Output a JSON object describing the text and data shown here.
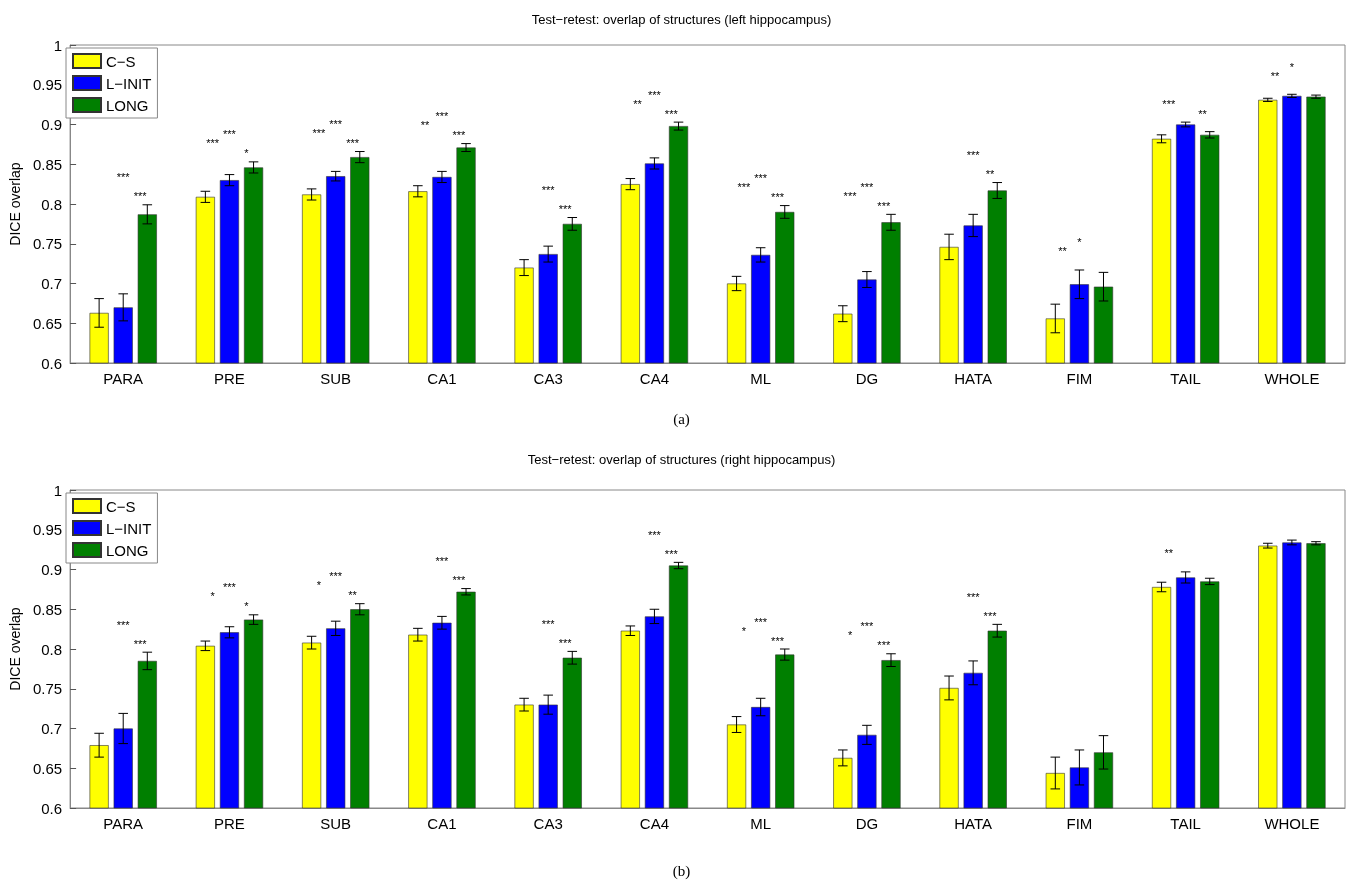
{
  "chart_data": [
    {
      "type": "bar",
      "title": "Test−retest: overlap of structures (left hippocampus)",
      "ylabel": "DICE overlap",
      "categories": [
        "PARA",
        "PRE",
        "SUB",
        "CA1",
        "CA3",
        "CA4",
        "ML",
        "DG",
        "HATA",
        "FIM",
        "TAIL",
        "WHOLE"
      ],
      "series": [
        {
          "name": "C−S",
          "color": "#ffff00",
          "values": [
            0.663,
            0.809,
            0.812,
            0.816,
            0.72,
            0.825,
            0.7,
            0.662,
            0.746,
            0.656,
            0.882,
            0.931
          ],
          "errors": [
            0.018,
            0.007,
            0.007,
            0.007,
            0.01,
            0.007,
            0.009,
            0.01,
            0.016,
            0.018,
            0.005,
            0.002
          ]
        },
        {
          "name": "L−INIT",
          "color": "#0000ff",
          "values": [
            0.67,
            0.83,
            0.835,
            0.834,
            0.737,
            0.851,
            0.736,
            0.705,
            0.773,
            0.699,
            0.9,
            0.936
          ],
          "errors": [
            0.017,
            0.007,
            0.006,
            0.007,
            0.01,
            0.007,
            0.009,
            0.01,
            0.014,
            0.018,
            0.003,
            0.002
          ]
        },
        {
          "name": "LONG",
          "color": "#007f00",
          "values": [
            0.787,
            0.846,
            0.859,
            0.871,
            0.775,
            0.898,
            0.79,
            0.777,
            0.817,
            0.696,
            0.887,
            0.935
          ],
          "errors": [
            0.012,
            0.007,
            0.007,
            0.005,
            0.008,
            0.005,
            0.008,
            0.01,
            0.01,
            0.018,
            0.004,
            0.002
          ]
        }
      ],
      "ylim": [
        0.6,
        1
      ],
      "yticks": [
        0.6,
        0.65,
        0.7,
        0.75,
        0.8,
        0.85,
        0.9,
        0.95,
        1
      ],
      "grid": false,
      "legend": "top left",
      "annotations": [
        "***",
        "***",
        "***",
        "***",
        "*",
        "***",
        "***",
        "***",
        "***",
        "**",
        "***",
        "***",
        "***",
        "***",
        "**",
        "***",
        "***",
        "***",
        "***",
        "***",
        "***",
        "***",
        "***",
        "**",
        "*",
        "**",
        "***",
        "**",
        "*",
        "**",
        "(a)"
      ]
    },
    {
      "type": "bar",
      "title": "Test−retest: overlap of structures (right hippocampus)",
      "ylabel": "DICE overlap",
      "categories": [
        "PARA",
        "PRE",
        "SUB",
        "CA1",
        "CA3",
        "CA4",
        "ML",
        "DG",
        "HATA",
        "FIM",
        "TAIL",
        "WHOLE"
      ],
      "series": [
        {
          "name": "C−S",
          "color": "#ffff00",
          "values": [
            0.679,
            0.804,
            0.808,
            0.818,
            0.73,
            0.823,
            0.705,
            0.663,
            0.751,
            0.644,
            0.878,
            0.93
          ],
          "errors": [
            0.015,
            0.006,
            0.008,
            0.008,
            0.008,
            0.006,
            0.01,
            0.01,
            0.015,
            0.02,
            0.006,
            0.003
          ]
        },
        {
          "name": "L−INIT",
          "color": "#0000ff",
          "values": [
            0.7,
            0.821,
            0.826,
            0.833,
            0.73,
            0.841,
            0.727,
            0.692,
            0.77,
            0.651,
            0.89,
            0.934
          ],
          "errors": [
            0.019,
            0.007,
            0.009,
            0.008,
            0.012,
            0.009,
            0.011,
            0.012,
            0.015,
            0.022,
            0.007,
            0.003
          ]
        },
        {
          "name": "LONG",
          "color": "#007f00",
          "values": [
            0.785,
            0.837,
            0.85,
            0.872,
            0.789,
            0.905,
            0.793,
            0.786,
            0.823,
            0.67,
            0.885,
            0.933
          ],
          "errors": [
            0.011,
            0.006,
            0.007,
            0.004,
            0.008,
            0.004,
            0.007,
            0.008,
            0.008,
            0.021,
            0.004,
            0.002
          ]
        }
      ],
      "ylim": [
        0.6,
        1
      ],
      "yticks": [
        0.6,
        0.65,
        0.7,
        0.75,
        0.8,
        0.85,
        0.9,
        0.95,
        1
      ],
      "grid": false,
      "legend": "top left",
      "annotations": [
        "***",
        "***",
        "***",
        "*",
        "*",
        "***",
        "*",
        "**",
        "***",
        "***",
        "***",
        "***",
        "***",
        "***",
        "***",
        "*",
        "***",
        "***",
        "*",
        "***",
        "***",
        "***",
        "**",
        "(b)"
      ]
    }
  ]
}
